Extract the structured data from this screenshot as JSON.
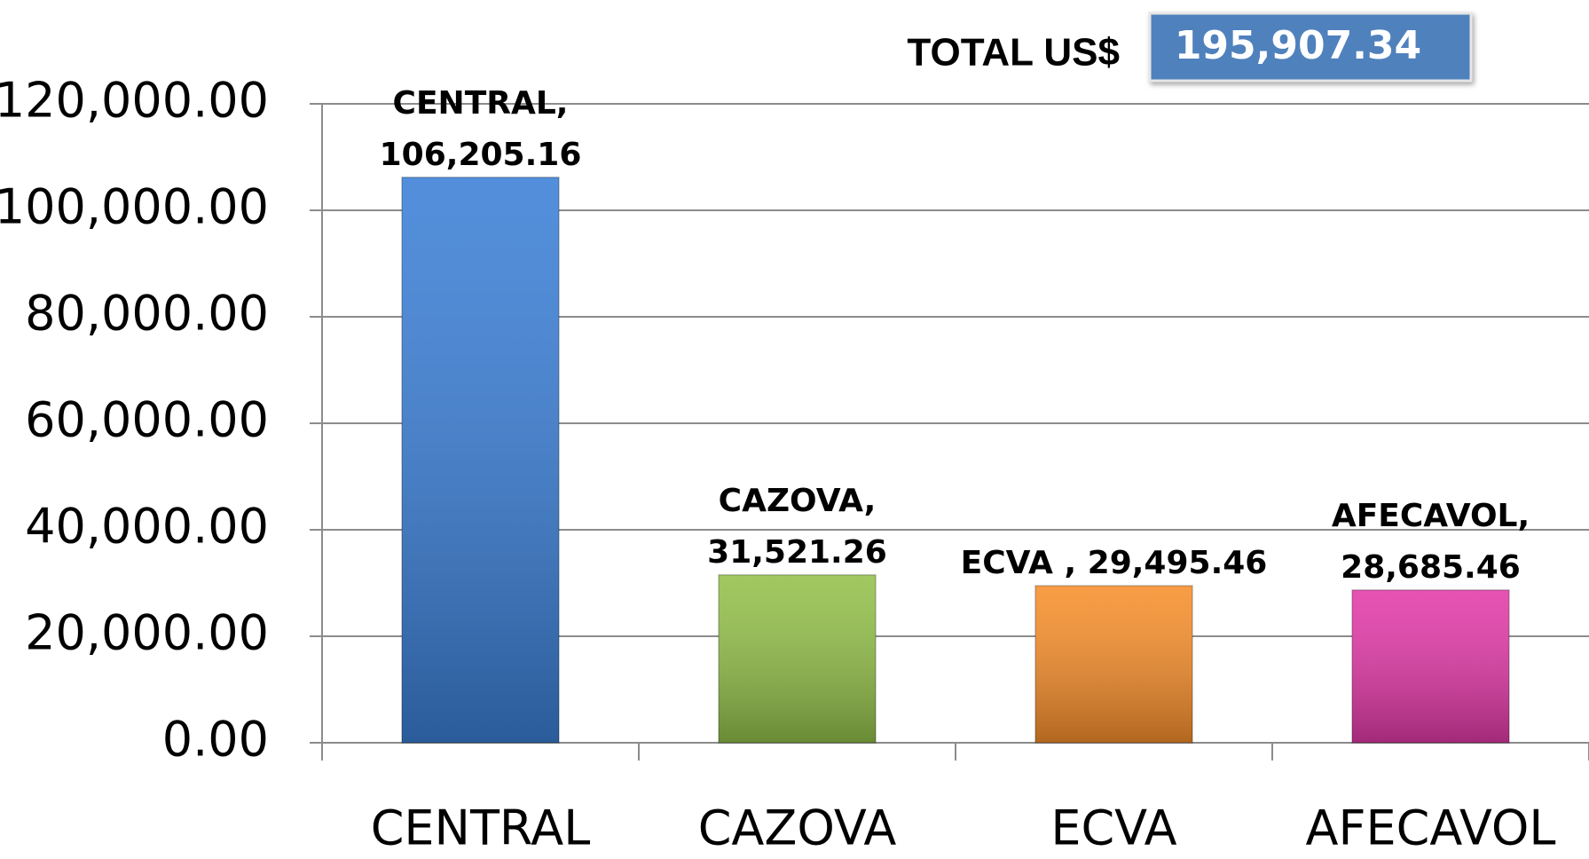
{
  "chart_data": {
    "type": "bar",
    "total_label": "TOTAL US$",
    "total_value": "195,907.34",
    "categories": [
      "CENTRAL",
      "CAZOVA",
      "ECVA",
      "AFECAVOL"
    ],
    "values": [
      106205.16,
      31521.26,
      29495.46,
      28685.46
    ],
    "value_labels": [
      "CENTRAL, 106,205.16",
      "CAZOVA, 31,521.26",
      "ECVA , 29,495.46",
      "AFECAVOL, 28,685.46"
    ],
    "colors": [
      "#3b7fd6",
      "#93c04a",
      "#f78f2c",
      "#e23aa8"
    ],
    "ylim": [
      0,
      120000
    ],
    "yticks": [
      {
        "value": 0,
        "label": "0.00"
      },
      {
        "value": 20000,
        "label": "20,000.00"
      },
      {
        "value": 40000,
        "label": "40,000.00"
      },
      {
        "value": 60000,
        "label": "60,000.00"
      },
      {
        "value": 80000,
        "label": "80,000.00"
      },
      {
        "value": 100000,
        "label": "100,000.00"
      },
      {
        "value": 120000,
        "label": "120,000.00"
      }
    ],
    "grid": true
  }
}
